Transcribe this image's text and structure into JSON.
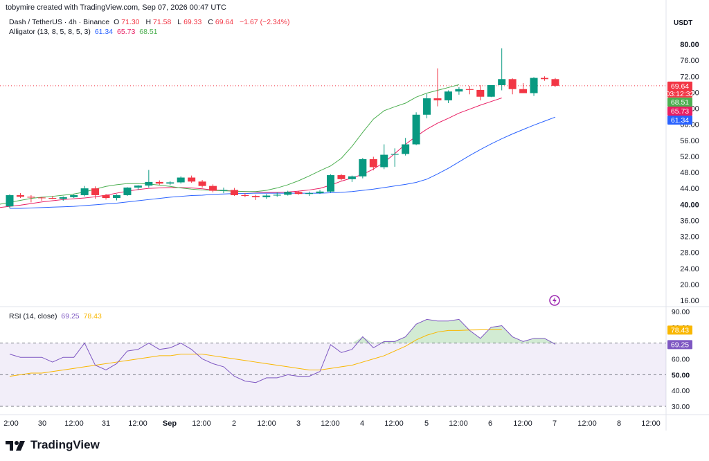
{
  "header": {
    "text": "tobymire created with TradingView.com, Sep 07, 2026 00:47 UTC"
  },
  "legend_main": {
    "symbol": "Dash / TetherUS · 4h · Binance",
    "o_label": "O",
    "o": "71.30",
    "h_label": "H",
    "h": "71.58",
    "l_label": "L",
    "l": "69.33",
    "c_label": "C",
    "c": "69.64",
    "change": "−1.67 (−2.34%)"
  },
  "legend_alligator": {
    "label": "Alligator (13, 8, 5, 8, 5, 3)",
    "jaw": "61.34",
    "teeth": "65.73",
    "lips": "68.51"
  },
  "legend_rsi": {
    "label": "RSI (14, close)",
    "rsi": "69.25",
    "ma": "78.43"
  },
  "currency": "USDT",
  "price_badge": {
    "value": "69.64",
    "countdown": "03:12:32"
  },
  "badges": {
    "lips": "68.51",
    "teeth": "65.73",
    "jaw": "61.34",
    "rsi": "69.25",
    "rsi_ma": "78.43"
  },
  "brand": "TradingView",
  "colors": {
    "up": "#089981",
    "down": "#f23645",
    "jaw": "#2962ff",
    "teeth": "#e91e63",
    "lips": "#4caf50",
    "rsi": "#7e57c2",
    "rsi_ma": "#f9b700"
  },
  "chart_data": {
    "type": "candlestick",
    "price_axis_ticks": [
      "80.00",
      "76.00",
      "72.00",
      "68.00",
      "64.00",
      "60.00",
      "56.00",
      "52.00",
      "48.00",
      "44.00",
      "40.00",
      "36.00",
      "32.00",
      "28.00",
      "24.00",
      "20.00",
      "16.00"
    ],
    "price_axis_values": [
      80,
      76,
      72,
      68,
      64,
      60,
      56,
      52,
      48,
      44,
      40,
      36,
      32,
      28,
      24,
      20,
      16
    ],
    "rsi_axis_ticks": [
      "90.00",
      "80.00",
      "70.00",
      "60.00",
      "50.00",
      "40.00",
      "30.00"
    ],
    "rsi_axis_values": [
      90,
      80,
      70,
      60,
      50,
      40,
      30
    ],
    "x_labels": [
      "2:00",
      "30",
      "12:00",
      "31",
      "12:00",
      "Sep",
      "12:00",
      "2",
      "12:00",
      "3",
      "12:00",
      "4",
      "12:00",
      "5",
      "12:00",
      "6",
      "12:00",
      "7",
      "12:00",
      "8",
      "12:00"
    ],
    "candles": [
      [
        39.5,
        42.5,
        39.0,
        42.3
      ],
      [
        42.3,
        42.8,
        41.6,
        41.9
      ],
      [
        41.9,
        42.3,
        40.5,
        41.7
      ],
      [
        41.7,
        41.9,
        40.9,
        41.6
      ],
      [
        41.6,
        42.1,
        41.3,
        41.4
      ],
      [
        41.4,
        42.0,
        40.9,
        41.8
      ],
      [
        41.8,
        42.5,
        41.6,
        42.3
      ],
      [
        42.3,
        44.6,
        42.0,
        44.0
      ],
      [
        44.0,
        44.5,
        41.4,
        42.3
      ],
      [
        42.3,
        42.6,
        41.2,
        41.6
      ],
      [
        41.6,
        42.5,
        41.0,
        42.3
      ],
      [
        42.3,
        44.3,
        42.1,
        44.2
      ],
      [
        44.2,
        44.8,
        43.6,
        44.7
      ],
      [
        44.7,
        48.6,
        44.2,
        45.6
      ],
      [
        45.6,
        46.0,
        44.9,
        45.2
      ],
      [
        45.2,
        45.8,
        44.8,
        45.5
      ],
      [
        45.5,
        47.0,
        45.2,
        46.7
      ],
      [
        46.7,
        47.2,
        45.4,
        45.7
      ],
      [
        45.7,
        46.1,
        44.2,
        44.6
      ],
      [
        44.6,
        45.0,
        43.0,
        43.4
      ],
      [
        43.4,
        44.2,
        42.8,
        43.6
      ],
      [
        43.6,
        44.1,
        42.1,
        42.3
      ],
      [
        42.3,
        42.8,
        41.8,
        42.1
      ],
      [
        42.1,
        42.4,
        41.1,
        41.8
      ],
      [
        41.8,
        42.6,
        41.4,
        42.2
      ],
      [
        42.2,
        43.0,
        41.9,
        42.4
      ],
      [
        42.4,
        43.4,
        42.2,
        43.1
      ],
      [
        43.1,
        43.4,
        42.4,
        42.6
      ],
      [
        42.6,
        43.2,
        42.1,
        42.8
      ],
      [
        42.8,
        43.6,
        42.6,
        43.2
      ],
      [
        43.2,
        47.5,
        43.0,
        47.3
      ],
      [
        47.3,
        47.6,
        46.0,
        46.3
      ],
      [
        46.3,
        47.2,
        45.6,
        47.0
      ],
      [
        47.0,
        51.6,
        46.5,
        51.3
      ],
      [
        51.3,
        51.9,
        48.5,
        49.3
      ],
      [
        49.3,
        55.0,
        48.8,
        52.4
      ],
      [
        52.4,
        54.0,
        49.4,
        52.6
      ],
      [
        52.6,
        56.6,
        52.2,
        55.0
      ],
      [
        55.0,
        63.0,
        54.8,
        62.4
      ],
      [
        62.4,
        67.6,
        61.5,
        66.5
      ],
      [
        66.5,
        74.0,
        64.5,
        66.0
      ],
      [
        66.0,
        68.5,
        65.3,
        68.2
      ],
      [
        68.2,
        69.3,
        67.4,
        68.8
      ],
      [
        68.8,
        69.6,
        67.5,
        68.6
      ],
      [
        68.6,
        69.8,
        66.0,
        66.9
      ],
      [
        66.9,
        69.8,
        66.8,
        69.8
      ],
      [
        69.8,
        79.0,
        68.5,
        71.3
      ],
      [
        71.3,
        71.5,
        67.5,
        68.8
      ],
      [
        68.8,
        70.3,
        67.8,
        67.8
      ],
      [
        67.8,
        71.8,
        67.1,
        71.6
      ],
      [
        71.6,
        72.0,
        70.9,
        71.3
      ],
      [
        71.3,
        71.58,
        69.33,
        69.64
      ]
    ],
    "alligator": {
      "jaw": [
        39.0,
        39.0,
        39.1,
        39.2,
        39.3,
        39.4,
        39.5,
        39.7,
        39.9,
        40.1,
        40.3,
        40.6,
        40.9,
        41.2,
        41.5,
        41.8,
        42.0,
        42.2,
        42.3,
        42.5,
        42.6,
        42.7,
        42.7,
        42.8,
        42.8,
        42.8,
        42.8,
        42.8,
        42.8,
        42.8,
        42.9,
        43.0,
        43.2,
        43.5,
        43.8,
        44.2,
        44.6,
        45.0,
        45.5,
        46.3,
        47.6,
        49.0,
        50.6,
        52.2,
        53.7,
        55.1,
        56.4,
        57.6,
        58.7,
        59.8,
        60.8,
        61.8
      ],
      "teeth": [
        38.7,
        38.9,
        39.2,
        39.5,
        39.8,
        40.2,
        40.6,
        40.9,
        41.2,
        41.4,
        41.6,
        41.9,
        42.3,
        42.8,
        43.3,
        43.7,
        44.0,
        44.1,
        44.2,
        44.2,
        44.1,
        43.9,
        43.6,
        43.5,
        43.3,
        43.2,
        43.1,
        43.0,
        43.0,
        43.1,
        43.3,
        43.6,
        44.0,
        44.8,
        45.8,
        46.6,
        47.5,
        48.8,
        50.5,
        52.7,
        55.0,
        57.0,
        58.8,
        60.3,
        61.5,
        62.8,
        63.8,
        64.8,
        65.7,
        66.6
      ],
      "lips": [
        38.6,
        38.8,
        39.2,
        39.6,
        40.0,
        40.5,
        41.0,
        41.5,
        41.8,
        42.0,
        42.3,
        42.6,
        43.1,
        43.8,
        44.5,
        44.9,
        45.2,
        45.2,
        45.1,
        44.8,
        44.5,
        44.1,
        43.8,
        43.6,
        43.5,
        43.4,
        43.3,
        43.2,
        43.2,
        43.5,
        44.1,
        44.9,
        45.9,
        47.1,
        48.4,
        49.6,
        51.5,
        54.5,
        58.0,
        61.3,
        63.4,
        64.4,
        65.3,
        66.8,
        67.8,
        68.5,
        69.2,
        69.9
      ],
      "jaw_start": 0,
      "teeth_start": 0,
      "lips_start": 0,
      "jaw_offset": 8,
      "teeth_offset": 5,
      "lips_offset": 3
    },
    "rsi": {
      "rsi": [
        63,
        61,
        61,
        61,
        58,
        61,
        61,
        70,
        56,
        53,
        57,
        65,
        66,
        70,
        66,
        67,
        70,
        66,
        60,
        57,
        55,
        49,
        46,
        45,
        48,
        48,
        50,
        49,
        49,
        52,
        69,
        64,
        66,
        74,
        67,
        71,
        71,
        74,
        82,
        85,
        84,
        84,
        85,
        78,
        73,
        80,
        81,
        74,
        71,
        73,
        73,
        69.25
      ],
      "ma": [
        49,
        50,
        51,
        51,
        52,
        53,
        54,
        55,
        56,
        57,
        58,
        59,
        60,
        61,
        62,
        62,
        63,
        63,
        63,
        62,
        61,
        60,
        59,
        58,
        57,
        56,
        55,
        54,
        53,
        53,
        54,
        55,
        56,
        58,
        60,
        62,
        65,
        68,
        72,
        75,
        77,
        78,
        78,
        78.3,
        78.4,
        78.4,
        78.43
      ]
    }
  }
}
